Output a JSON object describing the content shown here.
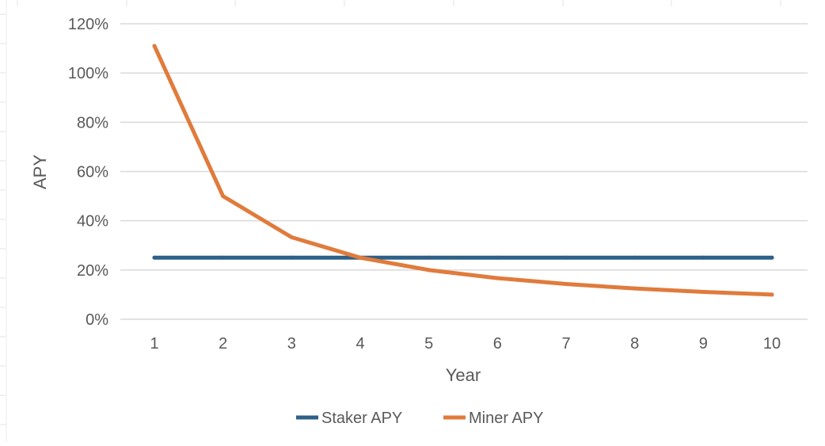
{
  "chart_data": {
    "type": "line",
    "title": "",
    "xlabel": "Year",
    "ylabel": "APY",
    "x": [
      1,
      2,
      3,
      4,
      5,
      6,
      7,
      8,
      9,
      10
    ],
    "x_tick_labels": [
      "1",
      "2",
      "3",
      "4",
      "5",
      "6",
      "7",
      "8",
      "9",
      "10"
    ],
    "ylim": [
      0,
      120
    ],
    "y_ticks": [
      0,
      20,
      40,
      60,
      80,
      100,
      120
    ],
    "y_tick_labels": [
      "0%",
      "20%",
      "40%",
      "60%",
      "80%",
      "100%",
      "120%"
    ],
    "grid": "horizontal",
    "legend_position": "bottom-center",
    "series": [
      {
        "name": "Staker APY",
        "color": "#2e6088",
        "values": [
          25,
          25,
          25,
          25,
          25,
          25,
          25,
          25,
          25,
          25
        ]
      },
      {
        "name": "Miner APY",
        "color": "#e07b3c",
        "values": [
          111,
          50,
          33.3,
          25,
          20,
          16.7,
          14.3,
          12.5,
          11.1,
          10
        ]
      }
    ]
  }
}
